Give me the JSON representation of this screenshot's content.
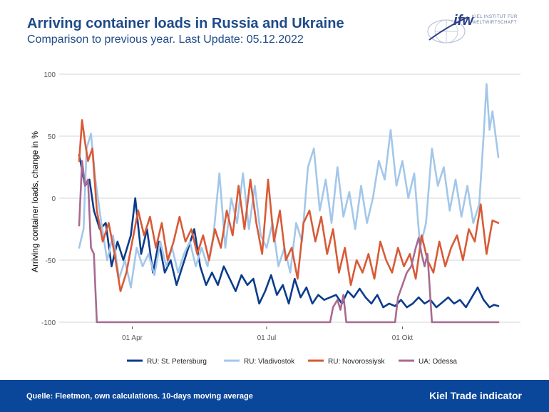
{
  "header": {
    "title": "Arriving container loads in Russia and Ukraine",
    "subtitle": "Comparison to previous year. Last Update: 05.12.2022"
  },
  "logo": {
    "mark": "ifw",
    "text_line1": "KIEL INSTITUT FÜR",
    "text_line2": "WELTWIRTSCHAFT",
    "icon": "globe-icon"
  },
  "footer": {
    "source": "Quelle: Fleetmon, own calculations. 10-days moving average",
    "brand": "Kiel Trade indicator",
    "background": "#0a4699"
  },
  "chart_data": {
    "type": "line",
    "title": "",
    "ylabel": "Arriving container loads, change in %",
    "xlabel": "",
    "ylim": [
      -110,
      100
    ],
    "yticks": [
      100,
      50,
      0,
      -50,
      -100
    ],
    "xlim": [
      "2022-02-24",
      "2022-12-05"
    ],
    "xticks": [
      {
        "date": "2022-04-01",
        "label": "01 Apr"
      },
      {
        "date": "2022-07-01",
        "label": "01 Jul"
      },
      {
        "date": "2022-10-01",
        "label": "01 Okt"
      }
    ],
    "grid": true,
    "legend": "bottom",
    "series": [
      {
        "name": "RU: St. Petersburg",
        "color": "#0b3c8c",
        "points": [
          [
            "2022-02-24",
            35
          ],
          [
            "2022-02-28",
            10
          ],
          [
            "2022-03-03",
            15
          ],
          [
            "2022-03-06",
            -10
          ],
          [
            "2022-03-10",
            -25
          ],
          [
            "2022-03-14",
            -20
          ],
          [
            "2022-03-18",
            -55
          ],
          [
            "2022-03-22",
            -35
          ],
          [
            "2022-03-26",
            -50
          ],
          [
            "2022-03-31",
            -30
          ],
          [
            "2022-04-03",
            0
          ],
          [
            "2022-04-07",
            -45
          ],
          [
            "2022-04-11",
            -25
          ],
          [
            "2022-04-15",
            -60
          ],
          [
            "2022-04-19",
            -35
          ],
          [
            "2022-04-23",
            -60
          ],
          [
            "2022-04-27",
            -50
          ],
          [
            "2022-05-01",
            -70
          ],
          [
            "2022-05-05",
            -55
          ],
          [
            "2022-05-09",
            -40
          ],
          [
            "2022-05-13",
            -25
          ],
          [
            "2022-05-17",
            -55
          ],
          [
            "2022-05-21",
            -70
          ],
          [
            "2022-05-25",
            -60
          ],
          [
            "2022-05-29",
            -70
          ],
          [
            "2022-06-02",
            -55
          ],
          [
            "2022-06-06",
            -65
          ],
          [
            "2022-06-10",
            -75
          ],
          [
            "2022-06-14",
            -62
          ],
          [
            "2022-06-18",
            -70
          ],
          [
            "2022-06-22",
            -65
          ],
          [
            "2022-06-26",
            -85
          ],
          [
            "2022-06-30",
            -75
          ],
          [
            "2022-07-04",
            -62
          ],
          [
            "2022-07-08",
            -78
          ],
          [
            "2022-07-12",
            -70
          ],
          [
            "2022-07-16",
            -85
          ],
          [
            "2022-07-20",
            -65
          ],
          [
            "2022-07-24",
            -80
          ],
          [
            "2022-07-28",
            -72
          ],
          [
            "2022-08-01",
            -85
          ],
          [
            "2022-08-05",
            -78
          ],
          [
            "2022-08-09",
            -82
          ],
          [
            "2022-08-13",
            -80
          ],
          [
            "2022-08-17",
            -78
          ],
          [
            "2022-08-21",
            -85
          ],
          [
            "2022-08-25",
            -75
          ],
          [
            "2022-08-29",
            -80
          ],
          [
            "2022-09-02",
            -73
          ],
          [
            "2022-09-06",
            -80
          ],
          [
            "2022-09-10",
            -85
          ],
          [
            "2022-09-14",
            -78
          ],
          [
            "2022-09-18",
            -88
          ],
          [
            "2022-09-22",
            -85
          ],
          [
            "2022-09-26",
            -87
          ],
          [
            "2022-09-30",
            -82
          ],
          [
            "2022-10-04",
            -88
          ],
          [
            "2022-10-08",
            -85
          ],
          [
            "2022-10-12",
            -80
          ],
          [
            "2022-10-16",
            -85
          ],
          [
            "2022-10-20",
            -82
          ],
          [
            "2022-10-24",
            -88
          ],
          [
            "2022-10-28",
            -84
          ],
          [
            "2022-11-01",
            -80
          ],
          [
            "2022-11-05",
            -85
          ],
          [
            "2022-11-09",
            -82
          ],
          [
            "2022-11-13",
            -88
          ],
          [
            "2022-11-17",
            -80
          ],
          [
            "2022-11-21",
            -72
          ],
          [
            "2022-11-25",
            -82
          ],
          [
            "2022-11-29",
            -88
          ],
          [
            "2022-12-02",
            -86
          ],
          [
            "2022-12-05",
            -87
          ]
        ]
      },
      {
        "name": "RU: Vladivostok",
        "color": "#a3c7e9",
        "points": [
          [
            "2022-02-24",
            -40
          ],
          [
            "2022-02-27",
            -25
          ],
          [
            "2022-03-01",
            40
          ],
          [
            "2022-03-04",
            52
          ],
          [
            "2022-03-07",
            15
          ],
          [
            "2022-03-11",
            -20
          ],
          [
            "2022-03-15",
            -50
          ],
          [
            "2022-03-19",
            -30
          ],
          [
            "2022-03-23",
            -65
          ],
          [
            "2022-03-27",
            -50
          ],
          [
            "2022-03-31",
            -72
          ],
          [
            "2022-04-04",
            -40
          ],
          [
            "2022-04-08",
            -55
          ],
          [
            "2022-04-12",
            -45
          ],
          [
            "2022-04-16",
            -62
          ],
          [
            "2022-04-20",
            -35
          ],
          [
            "2022-04-24",
            -55
          ],
          [
            "2022-04-28",
            -40
          ],
          [
            "2022-05-02",
            -60
          ],
          [
            "2022-05-06",
            -45
          ],
          [
            "2022-05-10",
            -35
          ],
          [
            "2022-05-14",
            -55
          ],
          [
            "2022-05-18",
            -40
          ],
          [
            "2022-05-22",
            -55
          ],
          [
            "2022-05-26",
            -30
          ],
          [
            "2022-05-30",
            20
          ],
          [
            "2022-06-03",
            -40
          ],
          [
            "2022-06-07",
            0
          ],
          [
            "2022-06-11",
            -20
          ],
          [
            "2022-06-15",
            20
          ],
          [
            "2022-06-19",
            -25
          ],
          [
            "2022-06-23",
            10
          ],
          [
            "2022-06-27",
            -30
          ],
          [
            "2022-07-01",
            -40
          ],
          [
            "2022-07-05",
            -20
          ],
          [
            "2022-07-09",
            -55
          ],
          [
            "2022-07-13",
            -40
          ],
          [
            "2022-07-17",
            -60
          ],
          [
            "2022-07-21",
            -20
          ],
          [
            "2022-07-25",
            -35
          ],
          [
            "2022-07-29",
            25
          ],
          [
            "2022-08-02",
            40
          ],
          [
            "2022-08-06",
            -10
          ],
          [
            "2022-08-10",
            15
          ],
          [
            "2022-08-14",
            -20
          ],
          [
            "2022-08-18",
            25
          ],
          [
            "2022-08-22",
            -15
          ],
          [
            "2022-08-26",
            5
          ],
          [
            "2022-08-30",
            -25
          ],
          [
            "2022-09-03",
            10
          ],
          [
            "2022-09-07",
            -20
          ],
          [
            "2022-09-11",
            0
          ],
          [
            "2022-09-15",
            30
          ],
          [
            "2022-09-19",
            15
          ],
          [
            "2022-09-23",
            55
          ],
          [
            "2022-09-27",
            10
          ],
          [
            "2022-10-01",
            30
          ],
          [
            "2022-10-05",
            0
          ],
          [
            "2022-10-09",
            20
          ],
          [
            "2022-10-13",
            -40
          ],
          [
            "2022-10-17",
            -20
          ],
          [
            "2022-10-21",
            40
          ],
          [
            "2022-10-25",
            10
          ],
          [
            "2022-10-29",
            25
          ],
          [
            "2022-11-02",
            -10
          ],
          [
            "2022-11-06",
            15
          ],
          [
            "2022-11-10",
            -15
          ],
          [
            "2022-11-14",
            10
          ],
          [
            "2022-11-18",
            -20
          ],
          [
            "2022-11-22",
            -5
          ],
          [
            "2022-11-25",
            50
          ],
          [
            "2022-11-27",
            92
          ],
          [
            "2022-11-29",
            55
          ],
          [
            "2022-12-01",
            70
          ],
          [
            "2022-12-05",
            33
          ]
        ]
      },
      {
        "name": "RU: Novorossiysk",
        "color": "#d85a36",
        "points": [
          [
            "2022-02-24",
            30
          ],
          [
            "2022-02-26",
            63
          ],
          [
            "2022-02-28",
            45
          ],
          [
            "2022-03-02",
            30
          ],
          [
            "2022-03-05",
            40
          ],
          [
            "2022-03-08",
            -10
          ],
          [
            "2022-03-12",
            -35
          ],
          [
            "2022-03-16",
            -20
          ],
          [
            "2022-03-20",
            -45
          ],
          [
            "2022-03-24",
            -75
          ],
          [
            "2022-03-28",
            -60
          ],
          [
            "2022-04-01",
            -35
          ],
          [
            "2022-04-05",
            -10
          ],
          [
            "2022-04-09",
            -30
          ],
          [
            "2022-04-13",
            -15
          ],
          [
            "2022-04-17",
            -40
          ],
          [
            "2022-04-21",
            -20
          ],
          [
            "2022-04-25",
            -50
          ],
          [
            "2022-04-29",
            -35
          ],
          [
            "2022-05-03",
            -15
          ],
          [
            "2022-05-07",
            -35
          ],
          [
            "2022-05-11",
            -25
          ],
          [
            "2022-05-15",
            -45
          ],
          [
            "2022-05-19",
            -30
          ],
          [
            "2022-05-23",
            -50
          ],
          [
            "2022-05-27",
            -25
          ],
          [
            "2022-05-31",
            -40
          ],
          [
            "2022-06-04",
            -10
          ],
          [
            "2022-06-08",
            -30
          ],
          [
            "2022-06-12",
            10
          ],
          [
            "2022-06-16",
            -25
          ],
          [
            "2022-06-20",
            15
          ],
          [
            "2022-06-24",
            -20
          ],
          [
            "2022-06-28",
            -45
          ],
          [
            "2022-07-02",
            15
          ],
          [
            "2022-07-06",
            -35
          ],
          [
            "2022-07-10",
            -10
          ],
          [
            "2022-07-14",
            -50
          ],
          [
            "2022-07-18",
            -40
          ],
          [
            "2022-07-22",
            -65
          ],
          [
            "2022-07-26",
            -20
          ],
          [
            "2022-07-30",
            -10
          ],
          [
            "2022-08-03",
            -35
          ],
          [
            "2022-08-07",
            -15
          ],
          [
            "2022-08-11",
            -45
          ],
          [
            "2022-08-15",
            -25
          ],
          [
            "2022-08-19",
            -60
          ],
          [
            "2022-08-23",
            -40
          ],
          [
            "2022-08-27",
            -70
          ],
          [
            "2022-08-31",
            -50
          ],
          [
            "2022-09-04",
            -60
          ],
          [
            "2022-09-08",
            -45
          ],
          [
            "2022-09-12",
            -65
          ],
          [
            "2022-09-16",
            -35
          ],
          [
            "2022-09-20",
            -50
          ],
          [
            "2022-09-24",
            -60
          ],
          [
            "2022-09-28",
            -40
          ],
          [
            "2022-10-02",
            -55
          ],
          [
            "2022-10-06",
            -45
          ],
          [
            "2022-10-10",
            -65
          ],
          [
            "2022-10-14",
            -30
          ],
          [
            "2022-10-18",
            -50
          ],
          [
            "2022-10-22",
            -60
          ],
          [
            "2022-10-26",
            -35
          ],
          [
            "2022-10-30",
            -55
          ],
          [
            "2022-11-03",
            -40
          ],
          [
            "2022-11-07",
            -30
          ],
          [
            "2022-11-11",
            -50
          ],
          [
            "2022-11-15",
            -25
          ],
          [
            "2022-11-19",
            -35
          ],
          [
            "2022-11-23",
            -5
          ],
          [
            "2022-11-27",
            -45
          ],
          [
            "2022-12-01",
            -18
          ],
          [
            "2022-12-05",
            -20
          ]
        ]
      },
      {
        "name": "UA: Odessa",
        "color": "#a86a91",
        "points": [
          [
            "2022-02-24",
            -22
          ],
          [
            "2022-02-26",
            30
          ],
          [
            "2022-02-28",
            10
          ],
          [
            "2022-03-02",
            15
          ],
          [
            "2022-03-04",
            -40
          ],
          [
            "2022-03-06",
            -45
          ],
          [
            "2022-03-08",
            -100
          ],
          [
            "2022-08-13",
            -100
          ],
          [
            "2022-08-15",
            -88
          ],
          [
            "2022-08-18",
            -82
          ],
          [
            "2022-08-20",
            -90
          ],
          [
            "2022-08-22",
            -78
          ],
          [
            "2022-08-24",
            -100
          ],
          [
            "2022-09-26",
            -100
          ],
          [
            "2022-09-28",
            -80
          ],
          [
            "2022-10-01",
            -70
          ],
          [
            "2022-10-04",
            -60
          ],
          [
            "2022-10-07",
            -55
          ],
          [
            "2022-10-10",
            -40
          ],
          [
            "2022-10-12",
            -32
          ],
          [
            "2022-10-14",
            -45
          ],
          [
            "2022-10-16",
            -55
          ],
          [
            "2022-10-18",
            -45
          ],
          [
            "2022-10-21",
            -100
          ],
          [
            "2022-12-05",
            -100
          ]
        ]
      }
    ]
  }
}
